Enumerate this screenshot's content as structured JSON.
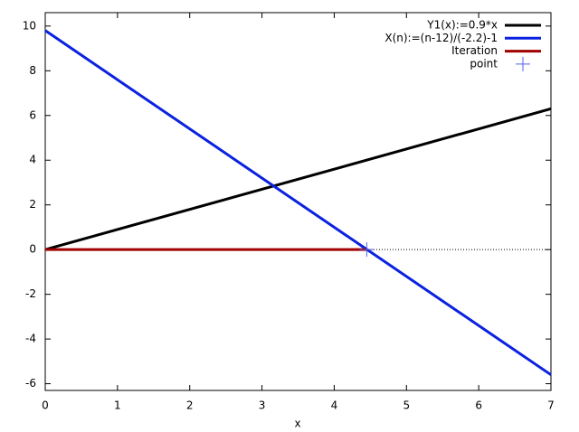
{
  "chart_data": {
    "type": "line",
    "xlabel": "x",
    "xlim": [
      0,
      7
    ],
    "ylim": [
      -6.3,
      10.6
    ],
    "xticks": [
      0,
      1,
      2,
      3,
      4,
      5,
      6,
      7
    ],
    "yticks": [
      -6,
      -4,
      -2,
      0,
      2,
      4,
      6,
      8,
      10
    ],
    "zero_axis": true,
    "legend": "top-right",
    "series": [
      {
        "name": "Y1(x):=0.9*x",
        "color": "#000000",
        "style": "line",
        "x": [
          0,
          7
        ],
        "values": [
          0,
          6.3
        ]
      },
      {
        "name": "X(n):=(n-12)/(-2.2)-1",
        "color": "#0a22e0",
        "style": "line",
        "x": [
          0,
          7
        ],
        "values": [
          9.8,
          -5.6
        ]
      },
      {
        "name": "Iteration",
        "color": "#a00000",
        "style": "line",
        "x": [
          0,
          4.45
        ],
        "values": [
          0,
          0
        ]
      },
      {
        "name": "point",
        "color": "#5060e8",
        "style": "point",
        "x": [
          4.45
        ],
        "values": [
          0
        ]
      }
    ]
  }
}
